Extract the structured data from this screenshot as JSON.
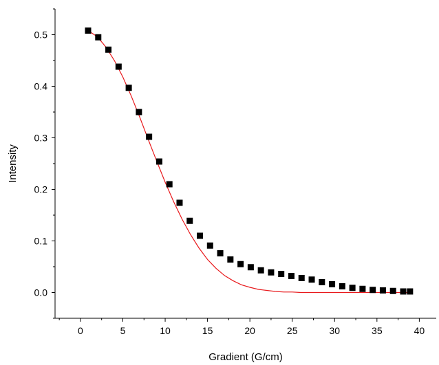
{
  "chart_data": {
    "type": "scatter",
    "title": "",
    "xlabel": "Gradient (G/cm)",
    "ylabel": "Intensity",
    "xlim": [
      -3,
      42
    ],
    "ylim": [
      -0.05,
      0.55
    ],
    "x_ticks": [
      0,
      5,
      10,
      15,
      20,
      25,
      30,
      35,
      40
    ],
    "x_tick_labels": [
      "0",
      "5",
      "10",
      "15",
      "20",
      "25",
      "30",
      "35",
      "40"
    ],
    "y_ticks": [
      0.0,
      0.1,
      0.2,
      0.3,
      0.4,
      0.5
    ],
    "y_tick_labels": [
      "0.0",
      "0.1",
      "0.2",
      "0.3",
      "0.4",
      "0.5"
    ],
    "grid": false,
    "series": [
      {
        "kind": "points",
        "marker": "square",
        "color": "#000000",
        "x": [
          0.9,
          2.1,
          3.3,
          4.5,
          5.7,
          6.9,
          8.1,
          9.3,
          10.5,
          11.7,
          12.9,
          14.1,
          15.3,
          16.5,
          17.7,
          18.9,
          20.1,
          21.3,
          22.5,
          23.7,
          24.9,
          26.1,
          27.3,
          28.5,
          29.7,
          30.9,
          32.1,
          33.3,
          34.5,
          35.7,
          36.9,
          38.1,
          38.9
        ],
        "y": [
          0.508,
          0.495,
          0.471,
          0.438,
          0.397,
          0.35,
          0.302,
          0.254,
          0.21,
          0.174,
          0.139,
          0.11,
          0.091,
          0.076,
          0.064,
          0.055,
          0.049,
          0.043,
          0.039,
          0.036,
          0.032,
          0.028,
          0.025,
          0.02,
          0.016,
          0.012,
          0.009,
          0.007,
          0.005,
          0.004,
          0.003,
          0.002,
          0.002
        ]
      },
      {
        "kind": "fit",
        "color": "#e8191c",
        "x": [
          0.9,
          2,
          3,
          4,
          5,
          6,
          7,
          8,
          9,
          10,
          11,
          12,
          13,
          14,
          15,
          16,
          17,
          18,
          19,
          20,
          21,
          22,
          23,
          24,
          25,
          26,
          27,
          28,
          29,
          30,
          32,
          34,
          36,
          38,
          38.9
        ],
        "y": [
          0.508,
          0.496,
          0.476,
          0.45,
          0.418,
          0.381,
          0.34,
          0.297,
          0.255,
          0.214,
          0.176,
          0.142,
          0.112,
          0.086,
          0.064,
          0.047,
          0.033,
          0.023,
          0.015,
          0.01,
          0.006,
          0.004,
          0.002,
          0.001,
          0.001,
          0.0,
          0.0,
          0.0,
          0.0,
          0.0,
          0.0,
          0.0,
          0.0,
          0.0,
          0.0
        ]
      }
    ]
  }
}
